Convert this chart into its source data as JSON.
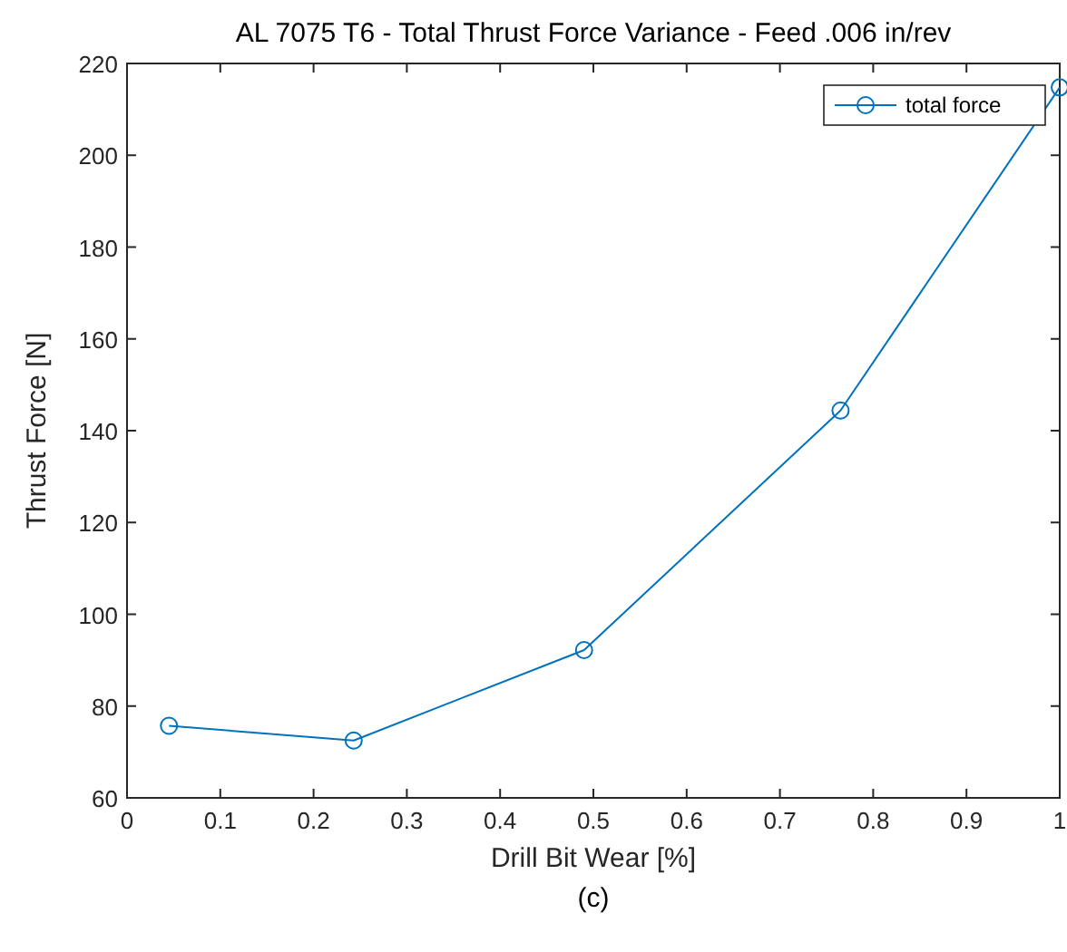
{
  "chart_data": {
    "type": "line",
    "title": "AL 7075 T6 - Total Thrust Force Variance - Feed .006 in/rev",
    "xlabel": "Drill Bit Wear [%]",
    "ylabel": "Thrust Force [N]",
    "annotations": [
      "(c)"
    ],
    "x": [
      0.045,
      0.243,
      0.49,
      0.765,
      1.0
    ],
    "series": [
      {
        "name": "total force",
        "color": "#0072bd",
        "values": [
          75.7,
          72.5,
          92.2,
          144.4,
          214.8
        ]
      }
    ],
    "xlim": [
      0,
      1
    ],
    "xticks": [
      0,
      0.1,
      0.2,
      0.3,
      0.4,
      0.5,
      0.6,
      0.7,
      0.8,
      0.9,
      1
    ],
    "ylim": [
      60,
      220
    ],
    "yticks": [
      60,
      80,
      100,
      120,
      140,
      160,
      180,
      200,
      220
    ],
    "grid": false,
    "legend": "top right",
    "marker": "circle",
    "line_style": "solid"
  }
}
